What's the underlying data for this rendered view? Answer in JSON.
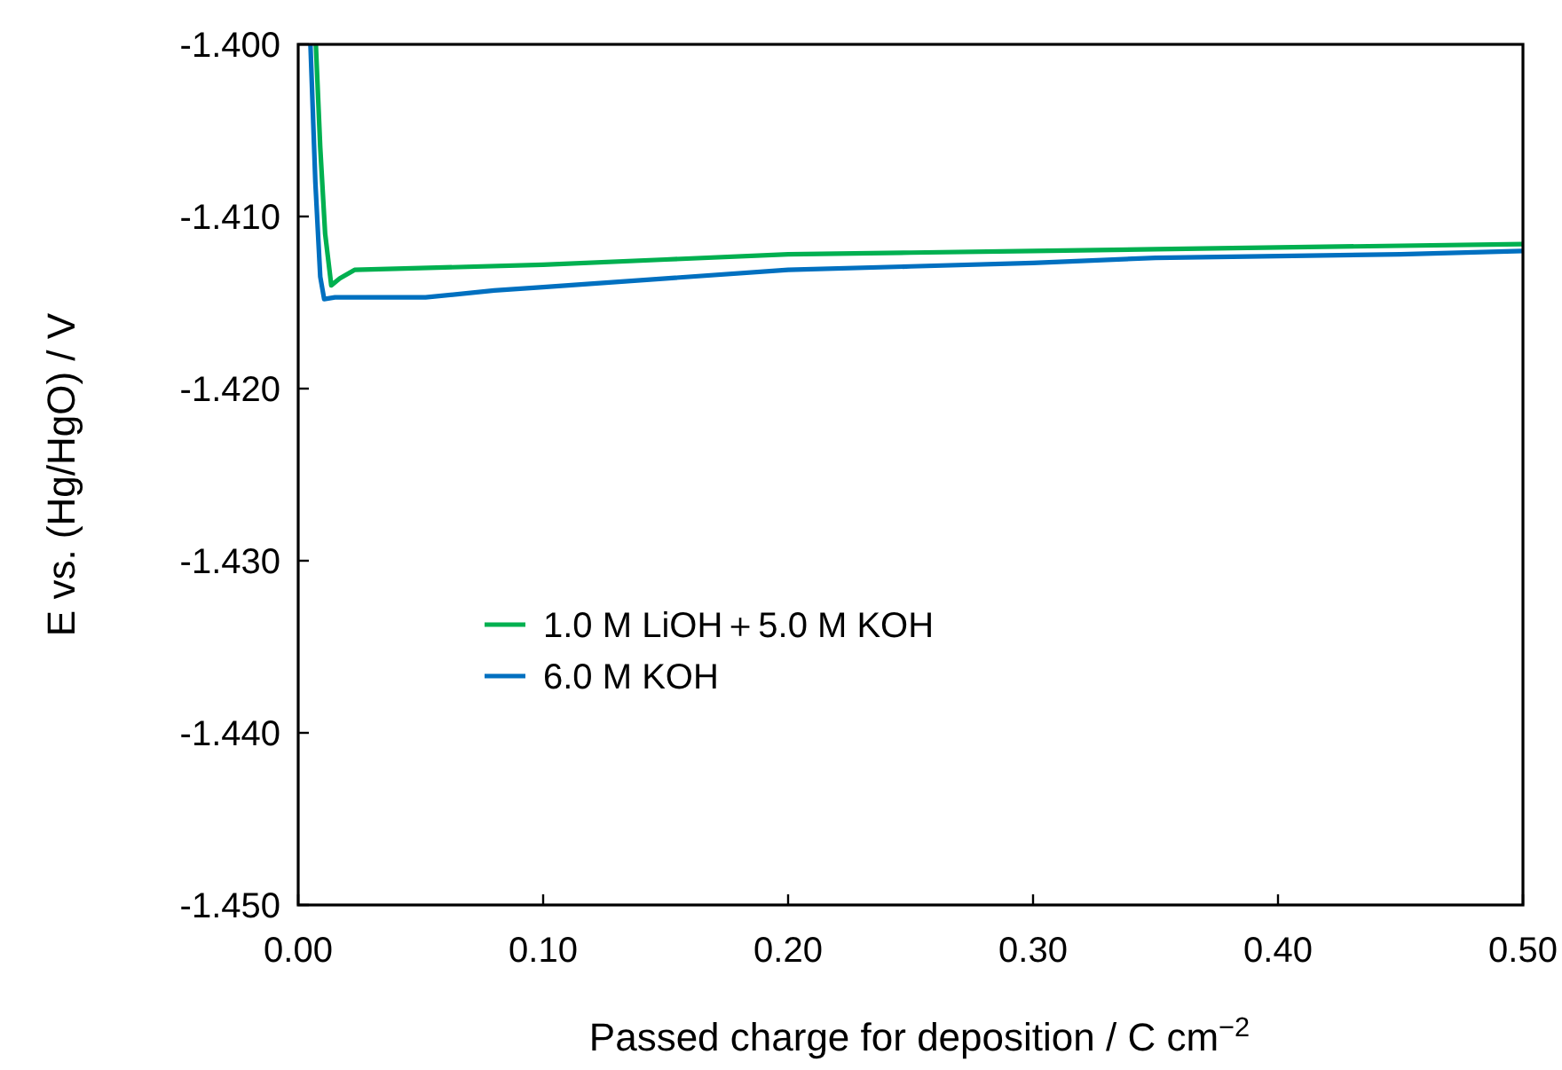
{
  "chart_data": {
    "type": "line",
    "xlabel": "Passed charge for deposition / C cm$^{−2}$",
    "ylabel": "E vs. (Hg/HgO) / V",
    "xlim": [
      0,
      0.5
    ],
    "ylim": [
      -1.45,
      -1.4
    ],
    "xticks": [
      {
        "value": 0,
        "label": "0.00"
      },
      {
        "value": 0.1,
        "label": "0.10"
      },
      {
        "value": 0.2,
        "label": "0.20"
      },
      {
        "value": 0.3,
        "label": "0.30"
      },
      {
        "value": 0.4,
        "label": "0.40"
      },
      {
        "value": 0.5,
        "label": "0.50"
      }
    ],
    "yticks": [
      {
        "value": -1.45,
        "label": "-1.450"
      },
      {
        "value": -1.44,
        "label": "-1.440"
      },
      {
        "value": -1.43,
        "label": "-1.430"
      },
      {
        "value": -1.42,
        "label": "-1.420"
      },
      {
        "value": -1.41,
        "label": "-1.410"
      },
      {
        "value": -1.4,
        "label": "-1.400"
      }
    ],
    "grid": false,
    "legend": "center left",
    "marker": "none",
    "line_style": "solid",
    "series": [
      {
        "name": "1.0 M LiOH＋5.0 M KOH",
        "color": "#00b050",
        "x": [
          0.0072,
          0.009,
          0.011,
          0.0135,
          0.017,
          0.023,
          0.05,
          0.1,
          0.15,
          0.2,
          0.25,
          0.3,
          0.35,
          0.4,
          0.45,
          0.5
        ],
        "values": [
          -1.4,
          -1.406,
          -1.411,
          -1.414,
          -1.4136,
          -1.4131,
          -1.413,
          -1.4128,
          -1.4125,
          -1.4122,
          -1.4121,
          -1.412,
          -1.4119,
          -1.4118,
          -1.4117,
          -1.4116
        ]
      },
      {
        "name": "6.0 M KOH",
        "color": "#0070c0",
        "x": [
          0.005,
          0.007,
          0.009,
          0.0106,
          0.015,
          0.03,
          0.052,
          0.08,
          0.1,
          0.15,
          0.2,
          0.25,
          0.3,
          0.35,
          0.4,
          0.45,
          0.5
        ],
        "values": [
          -1.4,
          -1.408,
          -1.4135,
          -1.4148,
          -1.4147,
          -1.4147,
          -1.4147,
          -1.4143,
          -1.4141,
          -1.4136,
          -1.4131,
          -1.4129,
          -1.4127,
          -1.4124,
          -1.4123,
          -1.4122,
          -1.412
        ]
      }
    ]
  }
}
